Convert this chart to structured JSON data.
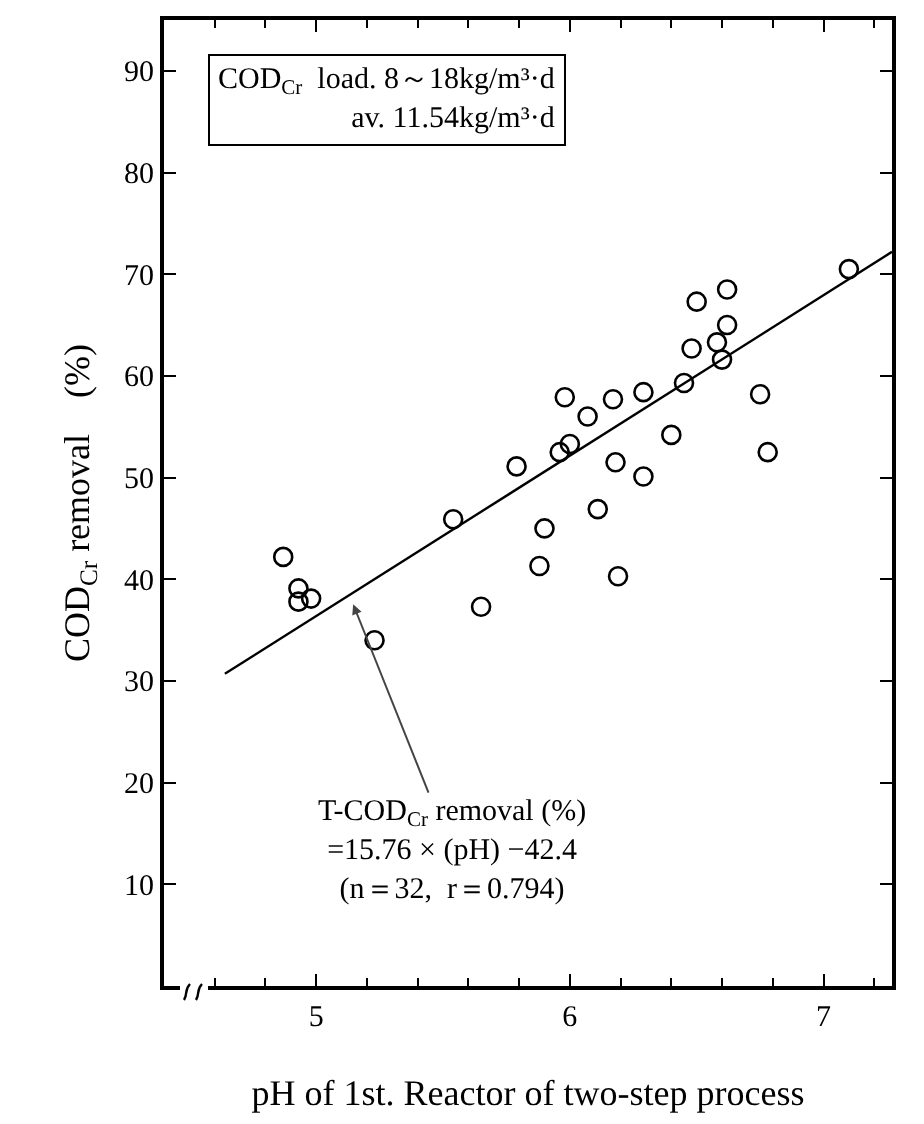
{
  "chart_data": {
    "type": "scatter",
    "xlabel": "pH of 1st. Reactor of two-step process",
    "ylabel": "COD$_{Cr}$ removal　(%)",
    "xlim": [
      4.4,
      7.27
    ],
    "xticks": [
      5,
      6,
      7
    ],
    "ylim": [
      0,
      95
    ],
    "yticks": [
      10,
      20,
      30,
      40,
      50,
      60,
      70,
      80,
      90
    ],
    "grid": false,
    "series": [
      {
        "color": "#000000",
        "marker": "circle",
        "x": [
          4.87,
          4.93,
          4.93,
          4.98,
          5.23,
          5.65,
          5.88,
          6.19,
          5.54,
          5.79,
          5.9,
          5.96,
          5.98,
          6.0,
          6.07,
          6.11,
          6.17,
          6.18,
          6.29,
          6.29,
          6.4,
          6.45,
          6.48,
          6.5,
          6.58,
          6.6,
          6.62,
          6.62,
          6.75,
          6.78,
          7.1
        ],
        "values": [
          42.2,
          39.1,
          37.8,
          38.1,
          34.0,
          37.3,
          41.3,
          40.3,
          45.9,
          51.1,
          45.0,
          52.5,
          57.9,
          53.3,
          56.0,
          46.9,
          57.7,
          51.5,
          58.4,
          50.1,
          54.2,
          59.3,
          62.7,
          67.3,
          63.3,
          61.6,
          65.0,
          68.5,
          58.2,
          52.5,
          70.5
        ]
      },
      {
        "type": "line",
        "color": "#000000",
        "x": [
          4.64,
          7.27
        ],
        "values": [
          30.7,
          72.2
        ],
        "line_style": "solid"
      }
    ],
    "annotations": [
      "COD$_{Cr}$  load. 8～18kg/m³·d\nav. 11.54kg/m³·d",
      {
        "text": "T-COD$_{Cr}$ removal (%)\n=15.76 × (pH) −42.4\n(n＝32,  r＝0.794)",
        "x": 5.14,
        "y": 37.9
      }
    ]
  }
}
